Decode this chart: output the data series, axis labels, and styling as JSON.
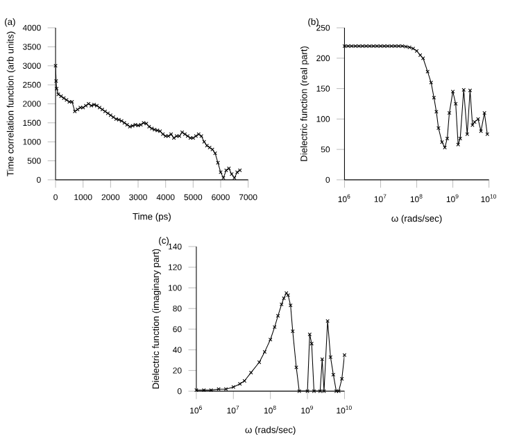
{
  "chart_data": [
    {
      "type": "line",
      "title": "(a)",
      "xlabel": "Time (ps)",
      "ylabel": "Time correlation function (arb units)",
      "marker": "cross",
      "line_style": "solid",
      "xlim": [
        0,
        7000
      ],
      "ylim": [
        0,
        4000
      ],
      "xticks": [
        0,
        1000,
        2000,
        3000,
        4000,
        5000,
        6000,
        7000
      ],
      "yticks": [
        0,
        500,
        1000,
        1500,
        2000,
        2500,
        3000,
        3500,
        4000
      ],
      "series": [
        {
          "color": "#000000",
          "x": [
            0,
            20,
            40,
            100,
            200,
            300,
            400,
            500,
            600,
            700,
            800,
            900,
            1000,
            1100,
            1200,
            1300,
            1400,
            1500,
            1600,
            1700,
            1800,
            1900,
            2000,
            2100,
            2200,
            2300,
            2400,
            2500,
            2600,
            2700,
            2800,
            2900,
            3000,
            3100,
            3200,
            3300,
            3400,
            3500,
            3600,
            3700,
            3800,
            3900,
            4000,
            4100,
            4200,
            4300,
            4400,
            4500,
            4600,
            4700,
            4800,
            4900,
            5000,
            5100,
            5200,
            5300,
            5400,
            5500,
            5600,
            5700,
            5800,
            5900,
            6000,
            6100,
            6200,
            6300,
            6400,
            6500,
            6600,
            6700
          ],
          "values": [
            3000,
            2600,
            2400,
            2250,
            2200,
            2150,
            2100,
            2050,
            2050,
            1800,
            1850,
            1900,
            1900,
            1950,
            2000,
            1950,
            1980,
            1950,
            1900,
            1850,
            1800,
            1750,
            1700,
            1650,
            1600,
            1580,
            1550,
            1500,
            1450,
            1400,
            1420,
            1450,
            1430,
            1450,
            1500,
            1480,
            1400,
            1350,
            1320,
            1300,
            1280,
            1200,
            1150,
            1150,
            1200,
            1100,
            1150,
            1150,
            1250,
            1200,
            1150,
            1100,
            1100,
            1150,
            1200,
            1150,
            1000,
            900,
            850,
            800,
            700,
            450,
            200,
            50,
            250,
            300,
            150,
            50,
            200,
            250
          ]
        }
      ]
    },
    {
      "type": "line",
      "title": "(b)",
      "xlabel": "ω (rads/sec)",
      "ylabel": "Dielectric function (real part)",
      "marker": "cross",
      "line_style": "solid",
      "log": "x",
      "xlim": [
        1000000,
        10000000000
      ],
      "ylim": [
        0,
        250
      ],
      "xticks": [
        {
          "value": 1000000,
          "label": "10$^{6}$"
        },
        {
          "value": 10000000,
          "label": "10$^{7}$"
        },
        {
          "value": 100000000,
          "label": "10$^{8}$"
        },
        {
          "value": 1000000000,
          "label": "10$^{9}$"
        },
        {
          "value": 10000000000,
          "label": "10$^{10}$"
        }
      ],
      "yticks": [
        0,
        50,
        100,
        150,
        200,
        250
      ],
      "series": [
        {
          "color": "#000000",
          "x": [
            1000000,
            1260000,
            1580000,
            2000000,
            2510000,
            3160000,
            3980000,
            5010000,
            6310000,
            7940000,
            10000000,
            12600000,
            15800000,
            20000000,
            25100000,
            31600000,
            39800000,
            50100000,
            63100000,
            79400000,
            100000000,
            125000000,
            150000000,
            200000000,
            250000000,
            300000000,
            350000000,
            400000000,
            500000000,
            600000000,
            700000000,
            800000000,
            1000000000,
            1200000000,
            1400000000,
            1600000000,
            2000000000,
            2500000000,
            3000000000,
            3500000000,
            4000000000,
            5000000000,
            6000000000,
            7500000000,
            9000000000
          ],
          "values": [
            220,
            220,
            220,
            220,
            220,
            220,
            220,
            220,
            220,
            220,
            220,
            220,
            220,
            220,
            220,
            220,
            220,
            219,
            218,
            216,
            212,
            205,
            200,
            178,
            160,
            135,
            112,
            85,
            62,
            53,
            68,
            110,
            145,
            125,
            58,
            68,
            148,
            75,
            147,
            90,
            95,
            100,
            80,
            110,
            75
          ]
        }
      ]
    },
    {
      "type": "line",
      "title": "(c)",
      "xlabel": "ω (rads/sec)",
      "ylabel": "Dielectric function (imaginary part)",
      "marker": "cross",
      "line_style": "solid",
      "log": "x",
      "xlim": [
        1000000,
        10000000000
      ],
      "ylim": [
        0,
        140
      ],
      "xticks": [
        {
          "value": 1000000,
          "label": "10$^{6}$"
        },
        {
          "value": 10000000,
          "label": "10$^{7}$"
        },
        {
          "value": 100000000,
          "label": "10$^{8}$"
        },
        {
          "value": 1000000000,
          "label": "10$^{9}$"
        },
        {
          "value": 10000000000,
          "label": "10$^{10}$"
        }
      ],
      "yticks": [
        0,
        20,
        40,
        60,
        80,
        100,
        120,
        140
      ],
      "series": [
        {
          "color": "#000000",
          "x": [
            1000000,
            1600000,
            2500000,
            4000000,
            6300000,
            10000000,
            15000000,
            20000000,
            30000000,
            50000000,
            70000000,
            100000000,
            130000000,
            160000000,
            200000000,
            230000000,
            270000000,
            300000000,
            350000000,
            400000000,
            500000000,
            600000000,
            1000000000,
            1150000000,
            1300000000,
            1500000000,
            2200000000,
            2500000000,
            2800000000,
            3500000000,
            4200000000,
            5000000000,
            6000000000,
            7000000000,
            8500000000,
            10000000000
          ],
          "values": [
            1,
            1,
            1,
            2,
            2,
            4,
            7,
            10,
            18,
            28,
            38,
            50,
            62,
            73,
            84,
            90,
            95,
            93,
            83,
            58,
            23,
            0,
            0,
            55,
            46,
            0,
            0,
            31,
            0,
            68,
            33,
            16,
            0,
            0,
            12,
            35
          ]
        }
      ]
    }
  ]
}
